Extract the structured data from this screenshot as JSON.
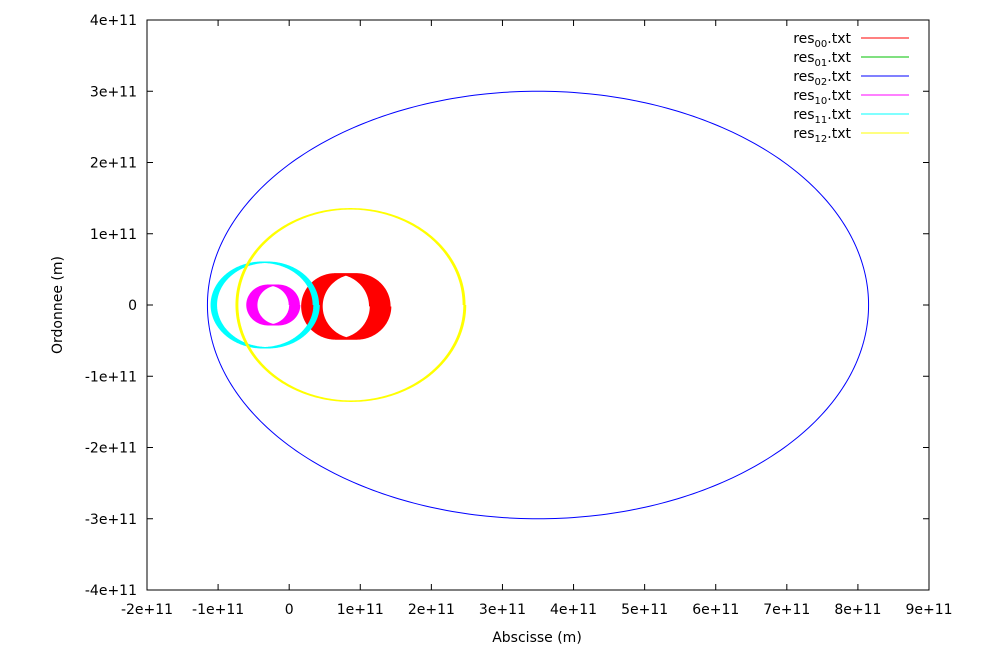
{
  "chart_data": {
    "type": "line",
    "xlabel": "Abscisse (m)",
    "ylabel": "Ordonnee (m)",
    "xlim": [
      -200000000000.0,
      900000000000.0
    ],
    "ylim": [
      -400000000000.0,
      400000000000.0
    ],
    "grid": false,
    "legend_position": "top-right",
    "x_ticks": [
      {
        "value": -200000000000.0,
        "label": "-2e+11"
      },
      {
        "value": -100000000000.0,
        "label": "-1e+11"
      },
      {
        "value": 0,
        "label": "0"
      },
      {
        "value": 100000000000.0,
        "label": "1e+11"
      },
      {
        "value": 200000000000.0,
        "label": "2e+11"
      },
      {
        "value": 300000000000.0,
        "label": "3e+11"
      },
      {
        "value": 400000000000.0,
        "label": "4e+11"
      },
      {
        "value": 500000000000.0,
        "label": "5e+11"
      },
      {
        "value": 600000000000.0,
        "label": "6e+11"
      },
      {
        "value": 700000000000.0,
        "label": "7e+11"
      },
      {
        "value": 800000000000.0,
        "label": "8e+11"
      },
      {
        "value": 900000000000.0,
        "label": "9e+11"
      }
    ],
    "y_ticks": [
      {
        "value": 400000000000.0,
        "label": "4e+11"
      },
      {
        "value": 300000000000.0,
        "label": "3e+11"
      },
      {
        "value": 200000000000.0,
        "label": "2e+11"
      },
      {
        "value": 100000000000.0,
        "label": "1e+11"
      },
      {
        "value": 0,
        "label": "0"
      },
      {
        "value": -100000000000.0,
        "label": "-1e+11"
      },
      {
        "value": -200000000000.0,
        "label": "-2e+11"
      },
      {
        "value": -300000000000.0,
        "label": "-3e+11"
      },
      {
        "value": -400000000000.0,
        "label": "-4e+11"
      }
    ],
    "series": [
      {
        "name": "res00.txt",
        "name_base": "res",
        "name_sub": "00",
        "name_ext": ".txt",
        "color": "#ff0000",
        "orbit": {
          "cx": 65000000000.0,
          "cy": -2000000000.0,
          "a": 48000000000.0,
          "b": 46000000000.0,
          "turns": 28,
          "drift_x": 30000000000.0,
          "stroke_width": 1
        }
      },
      {
        "name": "res01.txt",
        "name_base": "res",
        "name_sub": "01",
        "name_ext": ".txt",
        "color": "#00c000",
        "orbit": null
      },
      {
        "name": "res02.txt",
        "name_base": "res",
        "name_sub": "02",
        "name_ext": ".txt",
        "color": "#0000ff",
        "orbit": {
          "cx": 350000000000.0,
          "cy": 0,
          "a": 465000000000.0,
          "b": 300000000000.0,
          "turns": 1,
          "drift_x": 0,
          "stroke_width": 1
        }
      },
      {
        "name": "res10.txt",
        "name_base": "res",
        "name_sub": "10",
        "name_ext": ".txt",
        "color": "#ff00ff",
        "orbit": {
          "cx": -30000000000.0,
          "cy": 0,
          "a": 30000000000.0,
          "b": 28000000000.0,
          "turns": 22,
          "drift_x": 15000000000.0,
          "stroke_width": 1
        }
      },
      {
        "name": "res11.txt",
        "name_base": "res",
        "name_sub": "11",
        "name_ext": ".txt",
        "color": "#00ffff",
        "orbit": {
          "cx": -38000000000.0,
          "cy": 0,
          "a": 72000000000.0,
          "b": 60000000000.0,
          "turns": 8,
          "drift_x": 8000000000.0,
          "stroke_width": 1.5
        }
      },
      {
        "name": "res12.txt",
        "name_base": "res",
        "name_sub": "12",
        "name_ext": ".txt",
        "color": "#ffff00",
        "orbit": {
          "cx": 85000000000.0,
          "cy": 0,
          "a": 160000000000.0,
          "b": 135000000000.0,
          "turns": 3,
          "drift_x": 3000000000.0,
          "stroke_width": 1.5
        }
      }
    ]
  }
}
